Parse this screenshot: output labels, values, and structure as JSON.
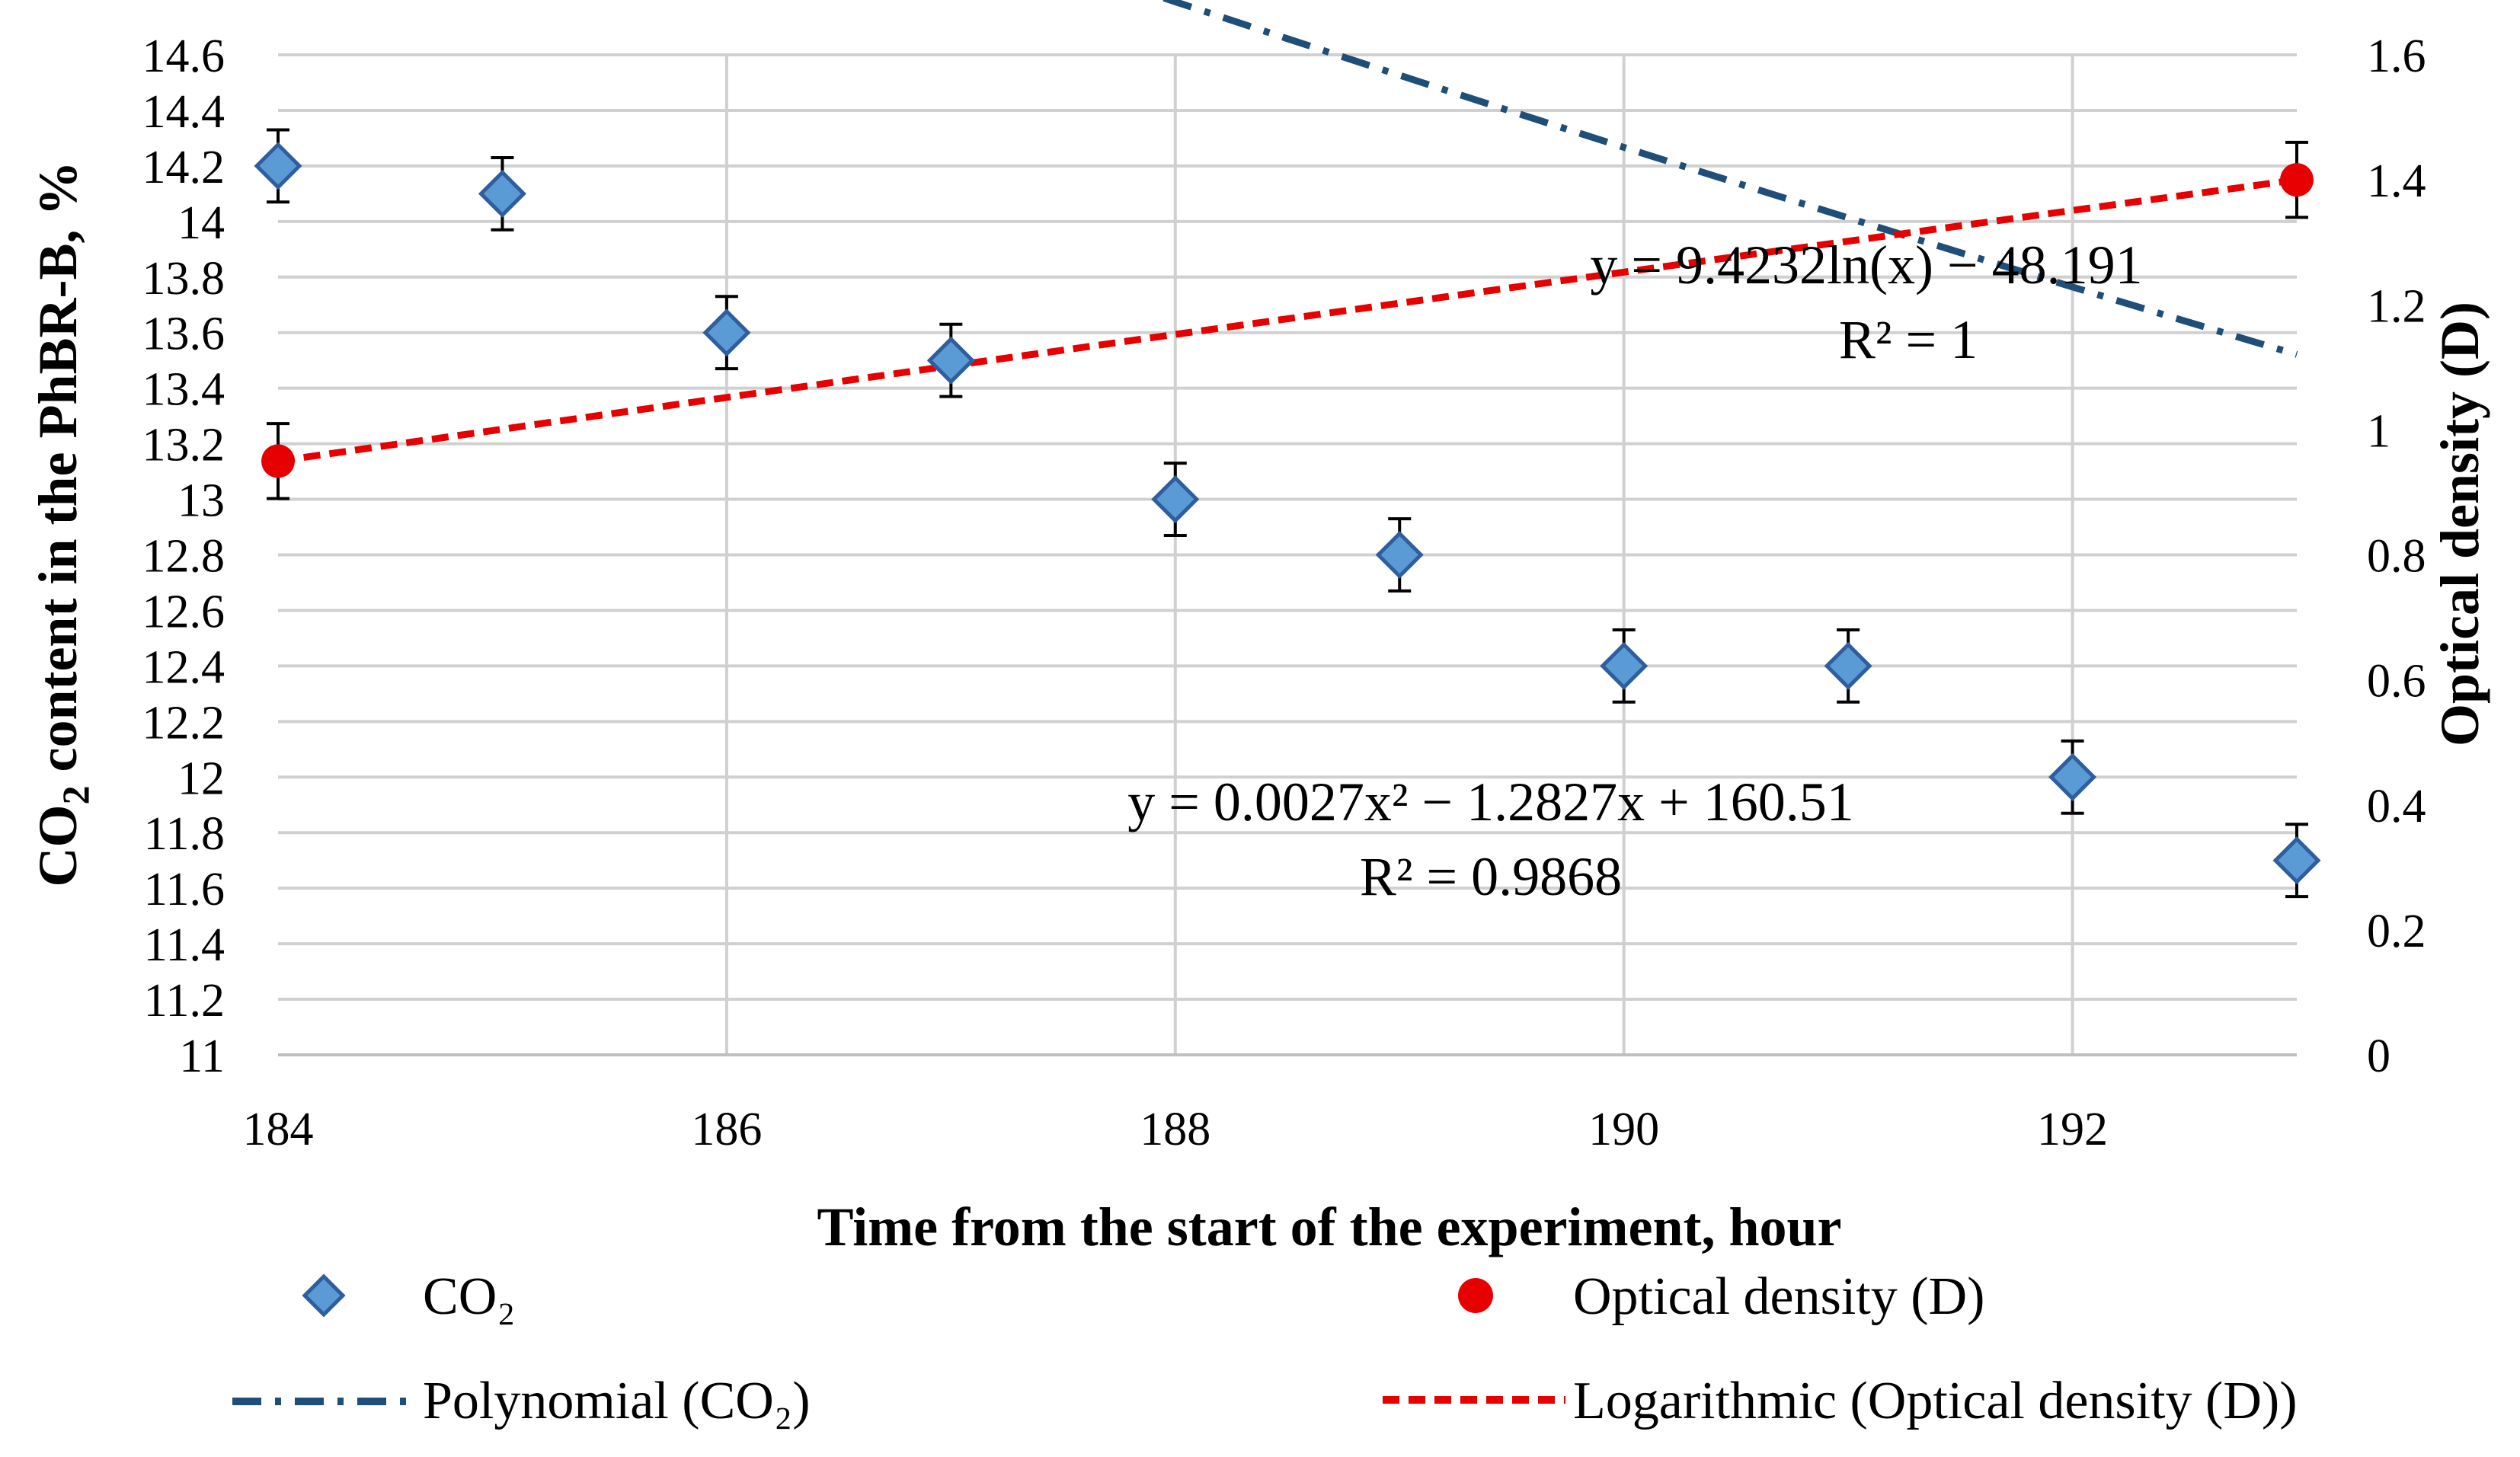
{
  "chart_data": {
    "type": "scatter",
    "x_ticks": [
      "184",
      "186",
      "188",
      "190",
      "192"
    ],
    "xlim": [
      184,
      193
    ],
    "xlabel": "Time from the start of the experiment, hour",
    "y_left": {
      "label_prefix": "CO",
      "label_sub": "2",
      "label_suffix": " content in the PhBR-B, %",
      "lim": [
        11,
        14.6
      ],
      "step": 0.2,
      "ticks": [
        "11",
        "11.2",
        "11.4",
        "11.6",
        "11.8",
        "12",
        "12.2",
        "12.4",
        "12.6",
        "12.8",
        "13",
        "13.2",
        "13.4",
        "13.6",
        "13.8",
        "14",
        "14.2",
        "14.4",
        "14.6"
      ]
    },
    "y_right": {
      "label": "Optical density (D)",
      "lim": [
        0,
        1.6
      ],
      "step": 0.2,
      "ticks": [
        "0",
        "0.2",
        "0.4",
        "0.6",
        "0.8",
        "1",
        "1.2",
        "1.4",
        "1.6"
      ]
    },
    "grid": true,
    "series": [
      {
        "name": "CO₂",
        "axis": "left",
        "marker": "diamond",
        "color": "#5B9BD5",
        "edge_color": "#2E5E9E",
        "x": [
          184,
          185,
          186,
          187,
          188,
          189,
          190,
          191,
          192,
          193
        ],
        "y": [
          14.2,
          14.1,
          13.6,
          13.5,
          13.0,
          12.8,
          12.4,
          12.4,
          12.0,
          11.7
        ],
        "error": 0.13
      },
      {
        "name": "Optical density (D)",
        "axis": "right",
        "marker": "circle",
        "color": "#E60000",
        "x": [
          184,
          193
        ],
        "y": [
          0.95,
          1.4
        ],
        "error": 0.06
      }
    ],
    "trendlines": [
      {
        "name": "Polynomial (CO₂)",
        "type": "polynomial",
        "axis": "left",
        "coefficients": [
          0.0027,
          -1.2827,
          160.51
        ],
        "color": "#1F4E79",
        "style": "dash-dot",
        "equation": "y = 0.0027x² − 1.2827x + 160.51",
        "r2": "R² = 0.9868"
      },
      {
        "name": "Logarithmic (Optical density (D))",
        "type": "logarithmic",
        "axis": "right",
        "color": "#E60000",
        "style": "dashed",
        "equation": "y = 9.4232ln(x) − 48.191",
        "r2": "R² = 1"
      }
    ],
    "legend": [
      {
        "label": "CO₂",
        "symbol": "diamond"
      },
      {
        "label": "Optical density (D)",
        "symbol": "circle"
      },
      {
        "label": "Polynomial (CO₂)",
        "symbol": "dash-dot-line"
      },
      {
        "label": "Logarithmic (Optical density (D))",
        "symbol": "dashed-line"
      }
    ],
    "legend_position": "bottom"
  }
}
